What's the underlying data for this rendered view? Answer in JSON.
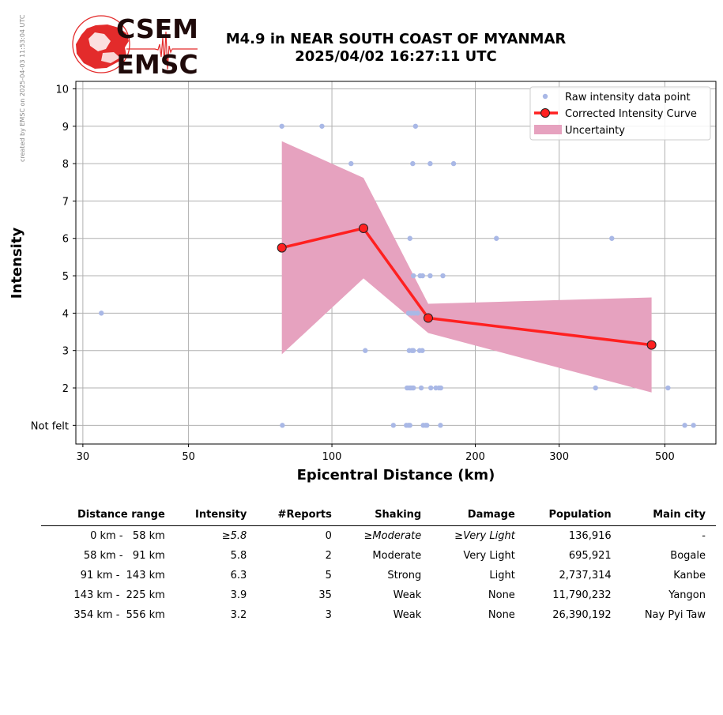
{
  "watermark": "created by EMSC on 2025-04-03 11:53:04 UTC",
  "logo": {
    "line1": "CSEM",
    "line2": "EMSC"
  },
  "colors": {
    "raw": "#a9b8e6",
    "curve": "#ff2020",
    "marker_edge": "#222222",
    "band": "#e6a2bf",
    "grid": "#b0b0b0",
    "logo_red": "#e32b2b",
    "logo_text": "#1f0a0a"
  },
  "chart_data": {
    "type": "scatter",
    "title": "M4.9 in NEAR SOUTH COAST OF MYANMAR",
    "subtitle": "2025/04/02 16:27:11 UTC",
    "xlabel": "Epicentral Distance (km)",
    "ylabel": "Intensity",
    "xscale": "log",
    "xlim": [
      29,
      640
    ],
    "ylim": [
      0.5,
      10.2
    ],
    "xticks": [
      30,
      50,
      100,
      200,
      300,
      500
    ],
    "yticks": [
      {
        "value": 1,
        "label": "Not felt"
      },
      {
        "value": 2,
        "label": "2"
      },
      {
        "value": 3,
        "label": "3"
      },
      {
        "value": 4,
        "label": "4"
      },
      {
        "value": 5,
        "label": "5"
      },
      {
        "value": 6,
        "label": "6"
      },
      {
        "value": 7,
        "label": "7"
      },
      {
        "value": 8,
        "label": "8"
      },
      {
        "value": 9,
        "label": "9"
      },
      {
        "value": 10,
        "label": "10"
      }
    ],
    "grid": true,
    "legend_position": "top-right",
    "legend": [
      "Raw intensity data point",
      "Corrected Intensity Curve",
      "Uncertainty"
    ],
    "series": [
      {
        "name": "Raw intensity data point",
        "kind": "scatter",
        "points": [
          [
            32.8,
            4
          ],
          [
            78.5,
            9
          ],
          [
            95.3,
            9
          ],
          [
            149.8,
            9
          ],
          [
            109.7,
            8
          ],
          [
            147.8,
            8
          ],
          [
            160.8,
            8
          ],
          [
            180.1,
            8
          ],
          [
            145.8,
            6
          ],
          [
            221.5,
            6
          ],
          [
            387,
            6
          ],
          [
            148.3,
            5
          ],
          [
            153.2,
            5
          ],
          [
            155,
            5
          ],
          [
            160.8,
            5
          ],
          [
            171,
            5
          ],
          [
            144.8,
            4
          ],
          [
            146.8,
            4
          ],
          [
            148.8,
            4
          ],
          [
            151.3,
            4
          ],
          [
            117.5,
            3
          ],
          [
            145.3,
            3
          ],
          [
            147.3,
            3
          ],
          [
            148.3,
            3
          ],
          [
            152.8,
            3
          ],
          [
            154.8,
            3
          ],
          [
            143.8,
            2
          ],
          [
            145.3,
            2
          ],
          [
            146.3,
            2
          ],
          [
            147.3,
            2
          ],
          [
            148.3,
            2
          ],
          [
            154,
            2
          ],
          [
            161.3,
            2
          ],
          [
            165.3,
            2
          ],
          [
            167.8,
            2
          ],
          [
            169.3,
            2
          ],
          [
            357.7,
            2
          ],
          [
            507.7,
            2
          ],
          [
            78.7,
            1
          ],
          [
            134.6,
            1
          ],
          [
            143.3,
            1
          ],
          [
            144.8,
            1
          ],
          [
            145.8,
            1
          ],
          [
            155.5,
            1
          ],
          [
            157.3,
            1
          ],
          [
            158.3,
            1
          ],
          [
            169,
            1
          ],
          [
            550.5,
            1
          ],
          [
            574.3,
            1
          ]
        ]
      },
      {
        "name": "Corrected Intensity Curve",
        "kind": "line",
        "points": [
          [
            78.5,
            5.75
          ],
          [
            116.5,
            6.27
          ],
          [
            159.3,
            3.87
          ],
          [
            469,
            3.15
          ]
        ]
      },
      {
        "name": "Uncertainty",
        "kind": "band",
        "x": [
          78.5,
          116.5,
          159.3,
          469
        ],
        "upper": [
          8.6,
          7.62,
          4.25,
          4.42
        ],
        "lower": [
          2.9,
          4.93,
          3.47,
          1.88
        ]
      }
    ]
  },
  "table": {
    "headers": [
      "Distance range",
      "Intensity",
      "#Reports",
      "Shaking",
      "Damage",
      "Population",
      "Main city"
    ],
    "rows": [
      {
        "distance": "0 km -   58 km",
        "intensity": "≥5.8",
        "reports": "0",
        "shaking": "≥Moderate",
        "damage": "≥Very Light",
        "population": "136,916",
        "city": "-"
      },
      {
        "distance": "58 km -   91 km",
        "intensity": "5.8",
        "reports": "2",
        "shaking": "Moderate",
        "damage": "Very Light",
        "population": "695,921",
        "city": "Bogale"
      },
      {
        "distance": "91 km -  143 km",
        "intensity": "6.3",
        "reports": "5",
        "shaking": "Strong",
        "damage": "Light",
        "population": "2,737,314",
        "city": "Kanbe"
      },
      {
        "distance": "143 km -  225 km",
        "intensity": "3.9",
        "reports": "35",
        "shaking": "Weak",
        "damage": "None",
        "population": "11,790,232",
        "city": "Yangon"
      },
      {
        "distance": "354 km -  556 km",
        "intensity": "3.2",
        "reports": "3",
        "shaking": "Weak",
        "damage": "None",
        "population": "26,390,192",
        "city": "Nay Pyi Taw"
      }
    ]
  }
}
